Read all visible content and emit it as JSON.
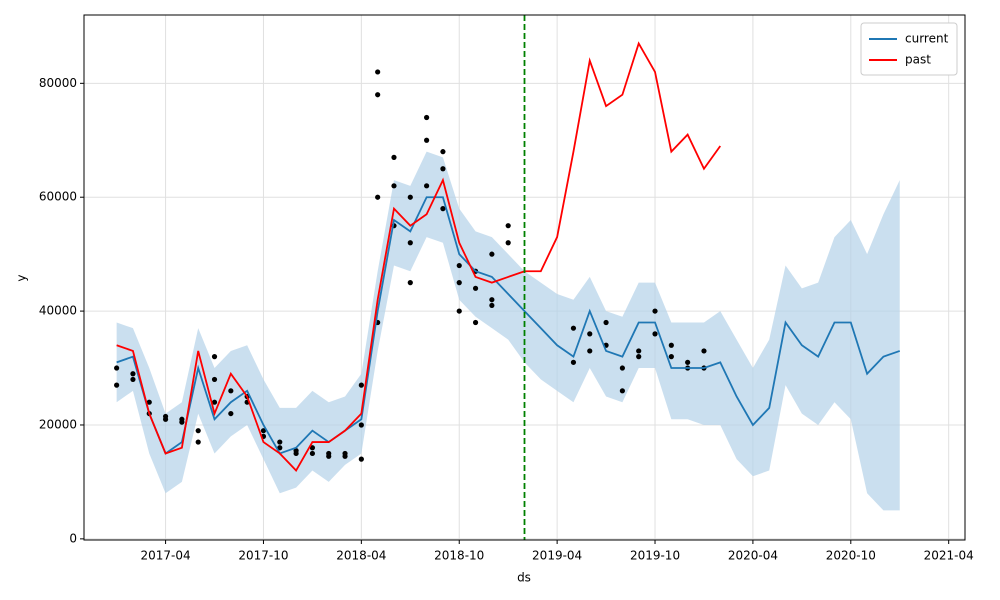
{
  "chart_data": {
    "type": "line",
    "x_label": "ds",
    "y_label": "y",
    "x": [
      "2017-01",
      "2017-02",
      "2017-03",
      "2017-04",
      "2017-05",
      "2017-06",
      "2017-07",
      "2017-08",
      "2017-09",
      "2017-10",
      "2017-11",
      "2017-12",
      "2018-01",
      "2018-02",
      "2018-03",
      "2018-04",
      "2018-05",
      "2018-06",
      "2018-07",
      "2018-08",
      "2018-09",
      "2018-10",
      "2018-11",
      "2018-12",
      "2019-01",
      "2019-02",
      "2019-03",
      "2019-04",
      "2019-05",
      "2019-06",
      "2019-07",
      "2019-08",
      "2019-09",
      "2019-10",
      "2019-11",
      "2019-12",
      "2020-01",
      "2020-02",
      "2020-03",
      "2020-04",
      "2020-05",
      "2020-06",
      "2020-07",
      "2020-08",
      "2020-09",
      "2020-10",
      "2020-11",
      "2020-12",
      "2021-01"
    ],
    "series": [
      {
        "name": "current",
        "color": "#1f77b4",
        "band_color": "#b3d2e8",
        "values": [
          31000,
          32000,
          22000,
          15000,
          17000,
          30000,
          21000,
          24000,
          26000,
          20000,
          15000,
          16000,
          19000,
          17000,
          19000,
          21000,
          40000,
          56000,
          54000,
          60000,
          60000,
          50000,
          47000,
          46000,
          43000,
          40000,
          37000,
          34000,
          32000,
          40000,
          33000,
          32000,
          38000,
          38000,
          30000,
          30000,
          30000,
          31000,
          25000,
          20000,
          23000,
          38000,
          34000,
          32000,
          38000,
          38000,
          29000,
          32000,
          33000
        ],
        "upper": [
          38000,
          37000,
          30000,
          22000,
          24000,
          37000,
          30000,
          33000,
          34000,
          28000,
          23000,
          23000,
          26000,
          24000,
          25000,
          29000,
          47000,
          63000,
          62000,
          68000,
          67000,
          58000,
          54000,
          53000,
          50000,
          47000,
          45000,
          43000,
          42000,
          46000,
          40000,
          39000,
          45000,
          45000,
          38000,
          38000,
          38000,
          40000,
          35000,
          30000,
          35000,
          48000,
          44000,
          45000,
          53000,
          56000,
          50000,
          57000,
          63000
        ],
        "lower": [
          24000,
          26000,
          15000,
          8000,
          10000,
          22000,
          15000,
          18000,
          20000,
          14000,
          8000,
          9000,
          12000,
          10000,
          13000,
          15000,
          33000,
          48000,
          47000,
          53000,
          52000,
          42000,
          39000,
          37000,
          35000,
          31000,
          28000,
          26000,
          24000,
          30000,
          25000,
          24000,
          30000,
          30000,
          21000,
          21000,
          20000,
          20000,
          14000,
          11000,
          12000,
          27000,
          22000,
          20000,
          24000,
          21000,
          8000,
          5000,
          5000
        ]
      },
      {
        "name": "past",
        "color": "#ff0000",
        "x": [
          "2017-01",
          "2017-02",
          "2017-03",
          "2017-04",
          "2017-05",
          "2017-06",
          "2017-07",
          "2017-08",
          "2017-09",
          "2017-10",
          "2017-11",
          "2017-12",
          "2018-01",
          "2018-02",
          "2018-03",
          "2018-04",
          "2018-05",
          "2018-06",
          "2018-07",
          "2018-08",
          "2018-09",
          "2018-10",
          "2018-11",
          "2018-12",
          "2019-01",
          "2019-02",
          "2019-03",
          "2019-04",
          "2019-05",
          "2019-06",
          "2019-07",
          "2019-08",
          "2019-09",
          "2019-10",
          "2019-11",
          "2019-12",
          "2020-01",
          "2020-02"
        ],
        "values": [
          34000,
          33000,
          22000,
          15000,
          16000,
          33000,
          22000,
          29000,
          25000,
          17000,
          15000,
          12000,
          17000,
          17000,
          19000,
          22000,
          42000,
          58000,
          55000,
          57000,
          63000,
          52000,
          46000,
          45000,
          46000,
          47000,
          47000,
          53000,
          68000,
          84000,
          76000,
          78000,
          87000,
          82000,
          68000,
          71000,
          65000,
          69000
        ]
      }
    ],
    "observed": {
      "color": "#000000",
      "x": [
        "2017-01",
        "2017-01",
        "2017-02",
        "2017-02",
        "2017-03",
        "2017-03",
        "2017-04",
        "2017-04",
        "2017-05",
        "2017-05",
        "2017-06",
        "2017-06",
        "2017-07",
        "2017-07",
        "2017-07",
        "2017-08",
        "2017-08",
        "2017-09",
        "2017-09",
        "2017-10",
        "2017-10",
        "2017-11",
        "2017-11",
        "2017-12",
        "2017-12",
        "2018-01",
        "2018-01",
        "2018-02",
        "2018-02",
        "2018-03",
        "2018-03",
        "2018-04",
        "2018-04",
        "2018-04",
        "2018-05",
        "2018-05",
        "2018-05",
        "2018-05",
        "2018-06",
        "2018-06",
        "2018-06",
        "2018-07",
        "2018-07",
        "2018-07",
        "2018-08",
        "2018-08",
        "2018-08",
        "2018-09",
        "2018-09",
        "2018-09",
        "2018-10",
        "2018-10",
        "2018-10",
        "2018-11",
        "2018-11",
        "2018-11",
        "2018-12",
        "2018-12",
        "2018-12",
        "2019-01",
        "2019-01",
        "2019-05",
        "2019-05",
        "2019-06",
        "2019-06",
        "2019-07",
        "2019-07",
        "2019-08",
        "2019-08",
        "2019-09",
        "2019-09",
        "2019-10",
        "2019-10",
        "2019-11",
        "2019-11",
        "2019-12",
        "2019-12",
        "2020-01",
        "2020-01"
      ],
      "values": [
        27000,
        30000,
        29000,
        28000,
        24000,
        22000,
        21000,
        21500,
        21000,
        20500,
        19000,
        17000,
        28000,
        32000,
        24000,
        22000,
        26000,
        25000,
        24000,
        19000,
        18000,
        17000,
        16000,
        15000,
        15500,
        16000,
        15000,
        15000,
        14500,
        14500,
        15000,
        14000,
        20000,
        27000,
        38000,
        60000,
        82000,
        78000,
        67000,
        62000,
        55000,
        52000,
        45000,
        60000,
        74000,
        70000,
        62000,
        68000,
        65000,
        58000,
        48000,
        45000,
        40000,
        38000,
        44000,
        47000,
        42000,
        41000,
        50000,
        52000,
        55000,
        37000,
        31000,
        33000,
        36000,
        38000,
        34000,
        30000,
        26000,
        32000,
        33000,
        40000,
        36000,
        34000,
        32000,
        30000,
        31000,
        33000,
        30000
      ]
    },
    "vline": {
      "x": "2019-02",
      "color": "#008000"
    },
    "xlim": [
      "2016-11",
      "2021-05"
    ],
    "xticks": [
      "2017-04",
      "2017-10",
      "2018-04",
      "2018-10",
      "2019-04",
      "2019-10",
      "2020-04",
      "2020-10",
      "2021-04"
    ],
    "ylim": [
      -200,
      92000
    ],
    "yticks": [
      0,
      20000,
      40000,
      60000,
      80000
    ],
    "grid": true,
    "legend": "upper right"
  }
}
